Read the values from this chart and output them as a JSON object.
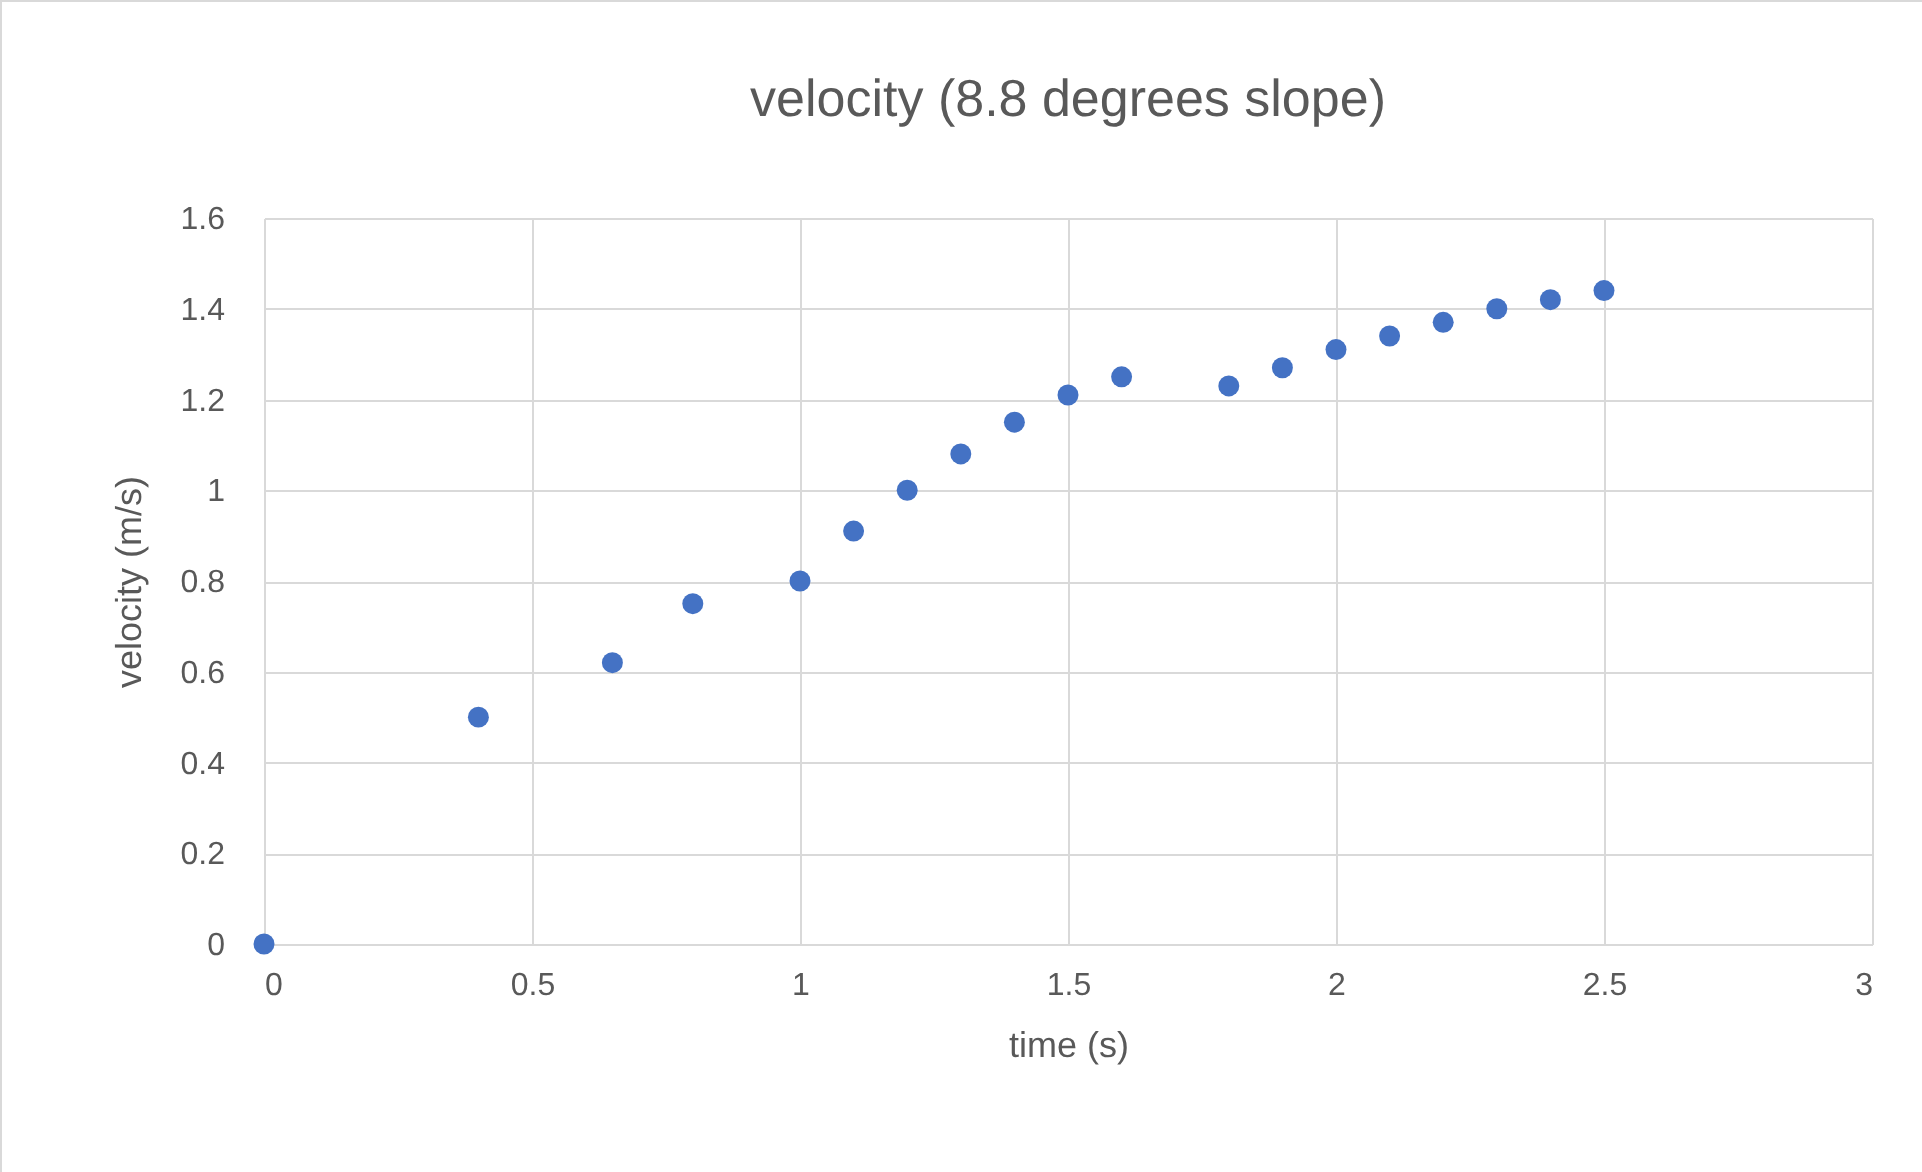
{
  "chart_data": {
    "type": "scatter",
    "title": "velocity (8.8 degrees slope)",
    "xlabel": "time (s)",
    "ylabel": "velocity (m/s)",
    "x": [
      0,
      0.4,
      0.65,
      0.8,
      1.0,
      1.1,
      1.2,
      1.3,
      1.4,
      1.5,
      1.6,
      1.8,
      1.9,
      2.0,
      2.1,
      2.2,
      2.3,
      2.4,
      2.5
    ],
    "series": [
      {
        "color": "#4472c4",
        "values": [
          0,
          0.5,
          0.62,
          0.75,
          0.8,
          0.91,
          1.0,
          1.08,
          1.15,
          1.21,
          1.25,
          1.23,
          1.27,
          1.31,
          1.34,
          1.37,
          1.4,
          1.42,
          1.44
        ]
      }
    ],
    "xlim": [
      0,
      3
    ],
    "xticks": [
      0,
      0.5,
      1,
      1.5,
      2,
      2.5,
      3
    ],
    "ylim": [
      0,
      1.6
    ],
    "yticks": [
      0,
      0.2,
      0.4,
      0.6,
      0.8,
      1,
      1.2,
      1.4,
      1.6
    ],
    "grid": true,
    "marker": "circle"
  }
}
